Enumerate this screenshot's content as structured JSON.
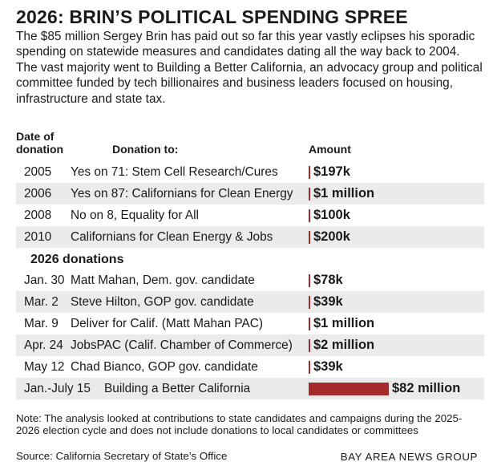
{
  "title": "2026: BRIN’S POLITICAL SPENDING SPREE",
  "subtitle": "The $85 million Sergey Brin has paid out so far this year vastly eclipses his sporadic spending on statewide measures and candidates dating all the way back to 2004. The vast majority went to Building a Better California, an advocacy group and political committee funded by tech billionaires and business leaders focused on housing, infrastructure and state tax.",
  "headers": {
    "date": "Date of donation",
    "to": "Donation to:",
    "amount": "Amount"
  },
  "section_label": "2026 donations",
  "note": "Note: The analysis looked at contributions to state candidates and campaigns during the 2025-2026 election cycle and does not include donations to local candidates or committees",
  "source": "Source: California Secretary of State’s Office",
  "credit": "BAY AREA NEWS GROUP",
  "colors": {
    "bar": "#a52a2a",
    "row_alt": "#ebebeb"
  },
  "chart_data": {
    "type": "bar",
    "orientation": "horizontal",
    "unit": "USD",
    "rows": [
      {
        "date": "2005",
        "recipient": "Yes on 71: Stem Cell Research/Cures",
        "amount_label": "$197k",
        "value": 197000,
        "group": "historical"
      },
      {
        "date": "2006",
        "recipient": "Yes on 87: Californians for Clean Energy",
        "amount_label": "$1 million",
        "value": 1000000,
        "group": "historical"
      },
      {
        "date": "2008",
        "recipient": "No on 8, Equality for All",
        "amount_label": "$100k",
        "value": 100000,
        "group": "historical"
      },
      {
        "date": "2010",
        "recipient": "Californians for Clean Energy & Jobs",
        "amount_label": "$200k",
        "value": 200000,
        "group": "historical"
      },
      {
        "date": "Jan. 30",
        "recipient": "Matt Mahan, Dem. gov. candidate",
        "amount_label": "$78k",
        "value": 78000,
        "group": "2026"
      },
      {
        "date": "Mar. 2",
        "recipient": "Steve Hilton, GOP gov. candidate",
        "amount_label": "$39k",
        "value": 39000,
        "group": "2026"
      },
      {
        "date": "Mar. 9",
        "recipient": "Deliver for Calif. (Matt Mahan PAC)",
        "amount_label": "$1 million",
        "value": 1000000,
        "group": "2026"
      },
      {
        "date": "Apr. 24",
        "recipient": "JobsPAC (Calif. Chamber of Commerce)",
        "amount_label": "$2 million",
        "value": 2000000,
        "group": "2026"
      },
      {
        "date": "May 12",
        "recipient": "Chad Bianco, GOP gov. candidate",
        "amount_label": "$39k",
        "value": 39000,
        "group": "2026"
      },
      {
        "date": "Jan.-July 15",
        "recipient": "Building a Better California",
        "amount_label": "$82 million",
        "value": 82000000,
        "group": "2026"
      }
    ]
  }
}
